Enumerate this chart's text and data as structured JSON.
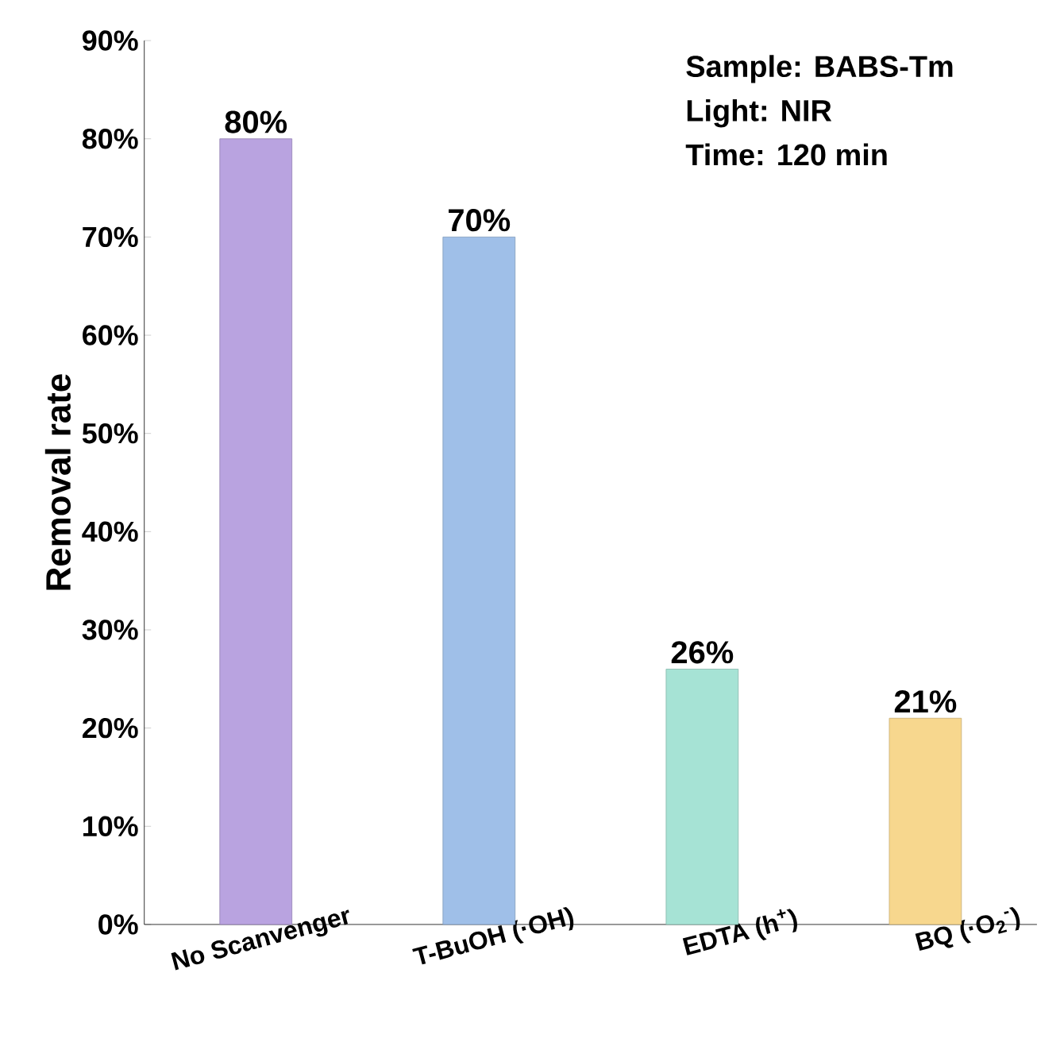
{
  "chart_data": {
    "type": "bar",
    "ylabel": "Removal rate",
    "categories": [
      "No Scanvenger",
      "T-BuOH (·OH)",
      "EDTA (h$^{+}$)",
      "BQ (·O$_{2}$$^{-}$)"
    ],
    "values": [
      80,
      70,
      26,
      21
    ],
    "colors": [
      "#b9a3e0",
      "#9fbfe8",
      "#a6e3d5",
      "#f7d78e"
    ],
    "value_labels": [
      "80%",
      "70%",
      "26%",
      "21%"
    ],
    "ylim": [
      0,
      90
    ],
    "yticks": [
      {
        "value": 0,
        "label": "0%"
      },
      {
        "value": 10,
        "label": "10%"
      },
      {
        "value": 20,
        "label": "20%"
      },
      {
        "value": 30,
        "label": "30%"
      },
      {
        "value": 40,
        "label": "40%"
      },
      {
        "value": 50,
        "label": "50%"
      },
      {
        "value": 60,
        "label": "60%"
      },
      {
        "value": 70,
        "label": "70%"
      },
      {
        "value": 80,
        "label": "80%"
      },
      {
        "value": 90,
        "label": "90%"
      }
    ],
    "annotations": [
      "Sample: BABS-Tm",
      "Light: NIR",
      "Time: 120 min"
    ]
  }
}
